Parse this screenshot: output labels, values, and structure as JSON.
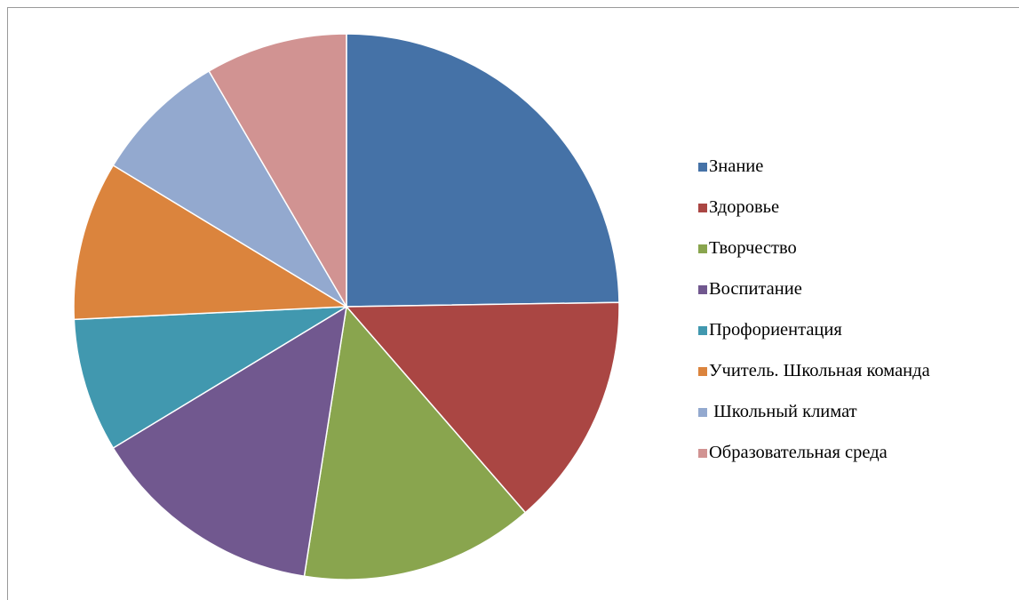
{
  "chart_data": {
    "type": "pie",
    "title": "",
    "categories": [
      "Знание",
      "Здоровье",
      "Творчество",
      "Воспитание",
      "Профориентация",
      "Учитель. Школьная команда",
      " Школьный климат",
      "Образовательная среда"
    ],
    "values": [
      25,
      14,
      14,
      14,
      8,
      9.5,
      8,
      8.5
    ],
    "colors": [
      "#4572A7",
      "#AA4643",
      "#89A54E",
      "#71588F",
      "#4198AF",
      "#DB843D",
      "#93A9CF",
      "#D19392"
    ],
    "start_angle_deg": 0,
    "direction": "clockwise",
    "legend": "right"
  }
}
